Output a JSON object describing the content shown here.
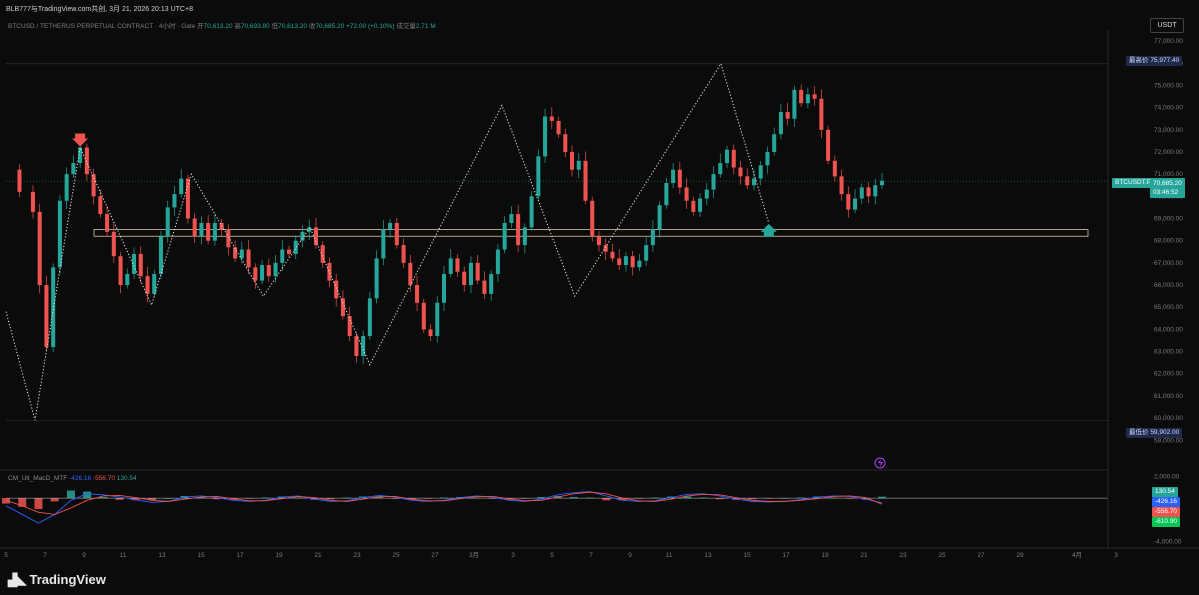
{
  "topbar": {
    "text": "BLB777与TradingView.com共创, 3月 21, 2026 20:13 UTC+8"
  },
  "symbol_line": {
    "name": "BTCUSD / TETHERUS PERPETUAL CONTRACT · 4小时 · Gate",
    "open_label": "开",
    "open": "70,613.20",
    "high_label": "高",
    "high": "70,693.80",
    "low_label": "低",
    "low": "70,613.20",
    "close_label": "收",
    "close": "70,685.20",
    "change": "+72.00 (+0.10%)",
    "vol_label": "成交量",
    "vol": "2.71 M"
  },
  "currency_button": "USDT",
  "macd_line": {
    "name": "CM_Ult_MacD_MTF",
    "v1": "-426.16",
    "v2": "-556.70",
    "v3": "130.54"
  },
  "tags": {
    "high_label": "最高价",
    "high_value": "75,977.40",
    "low_label": "最低价",
    "low_value": "59,902.00",
    "last_symbol": "BTCUSDT.P",
    "last_price": "70,685.20",
    "countdown": "03:46:52",
    "macd_a": "130.54",
    "macd_b": "-426.16",
    "macd_c": "-556.70",
    "macd_d": "-610.90"
  },
  "brand": "TradingView",
  "colors": {
    "up": "#26a69a",
    "down": "#ef5350",
    "macd": "#2962ff",
    "signal": "#ef5350",
    "bg": "#0b0b0b"
  },
  "chart_data": {
    "type": "candlestick",
    "price_axis": {
      "range": [
        58200,
        77500
      ],
      "ticks": [
        "77,000.00",
        "76,000.00",
        "75,000.00",
        "74,000.00",
        "73,000.00",
        "72,000.00",
        "71,000.00",
        "70,000.00",
        "69,000.00",
        "68,000.00",
        "67,000.00",
        "66,000.00",
        "65,000.00",
        "64,000.00",
        "63,000.00",
        "62,000.00",
        "61,000.00",
        "60,000.00",
        "59,000.00"
      ],
      "tick_values": [
        77000,
        76000,
        75000,
        74000,
        73000,
        72000,
        71000,
        70000,
        69000,
        68000,
        67000,
        66000,
        65000,
        64000,
        63000,
        62000,
        61000,
        60000,
        59000
      ]
    },
    "macd_axis": {
      "range": [
        -4400,
        2400
      ],
      "ticks": [
        "2,000.00",
        "-4,000.00"
      ],
      "tick_values": [
        2000,
        -4000
      ]
    },
    "time_axis": {
      "labels": [
        "5",
        "7",
        "9",
        "11",
        "13",
        "15",
        "17",
        "19",
        "21",
        "23",
        "25",
        "27",
        "3月",
        "3",
        "5",
        "7",
        "9",
        "11",
        "13",
        "15",
        "17",
        "19",
        "21",
        "23",
        "25",
        "27",
        "29",
        "4月",
        "3"
      ],
      "positions": [
        6,
        45,
        84,
        123,
        162,
        201,
        240,
        279,
        318,
        357,
        396,
        435,
        474,
        513,
        552,
        591,
        630,
        669,
        708,
        747,
        786,
        825,
        864,
        903,
        942,
        981,
        1020,
        1077,
        1116
      ]
    },
    "highest_price": 75977.4,
    "lowest_price": 59902.0,
    "last_price": 70685.2,
    "support_zone": [
      68200,
      68500
    ],
    "zigzag_pivots": [
      {
        "date": "3",
        "price": 64800
      },
      {
        "date": "6",
        "price": 59902
      },
      {
        "date": "9",
        "price": 72200
      },
      {
        "date": "13",
        "price": 65100
      },
      {
        "date": "15",
        "price": 71000
      },
      {
        "date": "19",
        "price": 65500
      },
      {
        "date": "22",
        "price": 68600
      },
      {
        "date": "25",
        "price": 62400
      },
      {
        "date": "3",
        "price": 74100
      },
      {
        "date": "9",
        "price": 65500
      },
      {
        "date": "17",
        "price": 75977
      },
      {
        "date": "20",
        "price": 68800
      }
    ],
    "close_path": [
      [
        0,
        71200
      ],
      [
        2,
        70200
      ],
      [
        4,
        69300
      ],
      [
        5,
        66000
      ],
      [
        6,
        63200
      ],
      [
        7,
        66800
      ],
      [
        8,
        69800
      ],
      [
        9,
        71000
      ],
      [
        10,
        71500
      ],
      [
        11,
        72200
      ],
      [
        12,
        71000
      ],
      [
        13,
        70000
      ],
      [
        14,
        69200
      ],
      [
        15,
        68400
      ],
      [
        16,
        67300
      ],
      [
        17,
        66000
      ],
      [
        18,
        66500
      ],
      [
        19,
        67400
      ],
      [
        20,
        66400
      ],
      [
        21,
        65600
      ],
      [
        22,
        66500
      ],
      [
        23,
        68200
      ],
      [
        24,
        69500
      ],
      [
        25,
        70100
      ],
      [
        26,
        70800
      ],
      [
        27,
        69000
      ],
      [
        28,
        68200
      ],
      [
        29,
        68800
      ],
      [
        30,
        68000
      ],
      [
        31,
        68800
      ],
      [
        32,
        68500
      ],
      [
        33,
        67700
      ],
      [
        34,
        67200
      ],
      [
        35,
        67600
      ],
      [
        36,
        66800
      ],
      [
        37,
        66200
      ],
      [
        38,
        66900
      ],
      [
        39,
        66400
      ],
      [
        40,
        67000
      ],
      [
        41,
        67600
      ],
      [
        42,
        67400
      ],
      [
        43,
        68000
      ],
      [
        44,
        68400
      ],
      [
        45,
        68600
      ],
      [
        46,
        67800
      ],
      [
        47,
        67000
      ],
      [
        48,
        66200
      ],
      [
        49,
        65400
      ],
      [
        50,
        64600
      ],
      [
        51,
        63700
      ],
      [
        52,
        62800
      ],
      [
        53,
        63700
      ],
      [
        54,
        65400
      ],
      [
        55,
        67200
      ],
      [
        56,
        68500
      ],
      [
        57,
        68800
      ],
      [
        58,
        67800
      ],
      [
        59,
        67000
      ],
      [
        60,
        66000
      ],
      [
        61,
        65200
      ],
      [
        62,
        64000
      ],
      [
        63,
        63700
      ],
      [
        64,
        65200
      ],
      [
        65,
        66500
      ],
      [
        66,
        67200
      ],
      [
        67,
        66600
      ],
      [
        68,
        66000
      ],
      [
        69,
        67000
      ],
      [
        70,
        66200
      ],
      [
        71,
        65600
      ],
      [
        72,
        66500
      ],
      [
        73,
        67600
      ],
      [
        74,
        68800
      ],
      [
        75,
        69200
      ],
      [
        76,
        67800
      ],
      [
        77,
        68600
      ],
      [
        78,
        70000
      ],
      [
        79,
        71800
      ],
      [
        80,
        73600
      ],
      [
        81,
        73400
      ],
      [
        82,
        72800
      ],
      [
        83,
        72000
      ],
      [
        84,
        71200
      ],
      [
        85,
        71600
      ],
      [
        86,
        69800
      ],
      [
        87,
        68200
      ],
      [
        88,
        67800
      ],
      [
        89,
        67500
      ],
      [
        90,
        67200
      ],
      [
        91,
        66900
      ],
      [
        92,
        67300
      ],
      [
        93,
        66800
      ],
      [
        94,
        67100
      ],
      [
        95,
        67800
      ],
      [
        96,
        68500
      ],
      [
        97,
        69600
      ],
      [
        98,
        70600
      ],
      [
        99,
        71200
      ],
      [
        100,
        70400
      ],
      [
        101,
        69800
      ],
      [
        102,
        69300
      ],
      [
        103,
        69900
      ],
      [
        104,
        70300
      ],
      [
        105,
        71000
      ],
      [
        106,
        71500
      ],
      [
        107,
        72100
      ],
      [
        108,
        71300
      ],
      [
        109,
        70900
      ],
      [
        110,
        70500
      ],
      [
        111,
        70800
      ],
      [
        112,
        71400
      ],
      [
        113,
        72000
      ],
      [
        114,
        72800
      ],
      [
        115,
        73800
      ],
      [
        116,
        73500
      ],
      [
        117,
        74800
      ],
      [
        118,
        74200
      ],
      [
        119,
        74600
      ],
      [
        120,
        74400
      ],
      [
        121,
        73000
      ],
      [
        122,
        71600
      ],
      [
        123,
        70900
      ],
      [
        124,
        70100
      ],
      [
        125,
        69400
      ],
      [
        126,
        69900
      ],
      [
        127,
        70400
      ],
      [
        128,
        70000
      ],
      [
        129,
        70500
      ],
      [
        130,
        70700
      ]
    ],
    "macd_series": [
      {
        "name": "CM_Ult_MacD_MTF",
        "values": [
          -700,
          -1500,
          -2300,
          -1500,
          -200,
          400,
          300,
          100,
          -150,
          -400,
          -300,
          100,
          200,
          50,
          -200,
          -300,
          -200,
          100,
          200,
          -100,
          -300,
          -250,
          50,
          250,
          100,
          -200,
          -300,
          -200,
          50,
          200,
          100,
          -200,
          -300,
          -100,
          300,
          500,
          600,
          200,
          -200,
          -300,
          -250,
          50,
          350,
          400,
          200,
          -100,
          -300,
          -350,
          -300,
          -150,
          100,
          200,
          150,
          -100,
          -426
        ]
      },
      {
        "name": "signal",
        "values": [
          -200,
          -700,
          -1300,
          -1500,
          -900,
          -200,
          200,
          250,
          50,
          -200,
          -300,
          -100,
          100,
          150,
          -50,
          -250,
          -250,
          -50,
          150,
          50,
          -200,
          -300,
          -100,
          150,
          150,
          -100,
          -250,
          -250,
          -50,
          150,
          150,
          -50,
          -250,
          -200,
          100,
          400,
          550,
          400,
          0,
          -250,
          -300,
          -100,
          200,
          350,
          300,
          50,
          -200,
          -300,
          -300,
          -200,
          -50,
          150,
          200,
          50,
          -557
        ]
      }
    ],
    "macd_hist": [
      -500,
      -800,
      -1000,
      -300,
      700,
      600,
      100,
      -150,
      -200,
      -200,
      0,
      200,
      100,
      -100,
      -150,
      -50,
      50,
      150,
      50,
      -150,
      -100,
      50,
      150,
      100,
      -50,
      -100,
      -50,
      50,
      100,
      50,
      -50,
      -150,
      -50,
      100,
      200,
      100,
      50,
      -200,
      -200,
      -50,
      50,
      150,
      150,
      50,
      -100,
      -150,
      -100,
      -50,
      0,
      50,
      150,
      50,
      -50,
      -150,
      131
    ]
  }
}
